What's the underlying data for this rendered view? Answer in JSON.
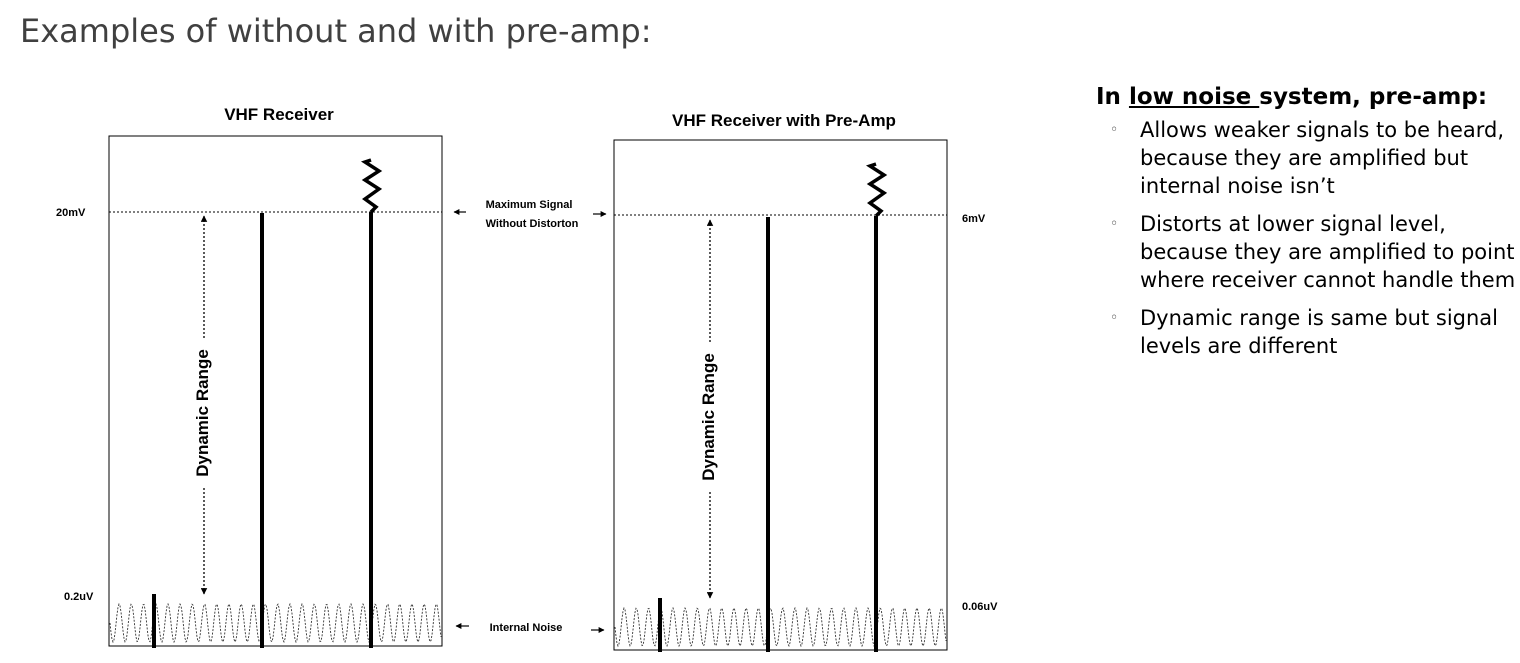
{
  "slide": {
    "title": "Examples of without and with pre-amp:"
  },
  "diagram": {
    "left_panel": {
      "title": "VHF Receiver",
      "top_level_label": "20mV",
      "bottom_level_label": "0.2uV",
      "range_label": "Dynamic Range"
    },
    "right_panel": {
      "title": "VHF Receiver with Pre-Amp",
      "top_level_label": "6mV",
      "bottom_level_label": "0.06uV",
      "range_label": "Dynamic Range"
    },
    "center_labels": {
      "max_signal_line1": "Maximum Signal",
      "max_signal_line2": "Without Distorton",
      "internal_noise": "Internal Noise"
    }
  },
  "side_panel": {
    "heading_prefix": "In ",
    "heading_underlined": "low noise ",
    "heading_suffix": "system, pre-amp:",
    "bullet_symbol": "◦",
    "bullets": [
      "Allows weaker signals to be heard, because they are amplified but internal noise isn’t",
      "Distorts at lower signal level, because they are amplified to point where receiver cannot handle them",
      "Dynamic range is same but signal levels are different"
    ]
  }
}
